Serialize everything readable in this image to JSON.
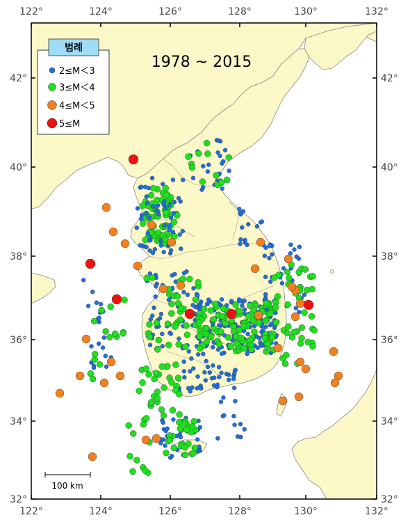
{
  "title": "1978 ~ 2015",
  "axes": {
    "lon_ticks": [
      "122°",
      "124°",
      "126°",
      "128°",
      "130°",
      "132°"
    ],
    "lat_ticks": [
      "32°",
      "34°",
      "36°",
      "38°",
      "40°",
      "42°"
    ]
  },
  "legend": {
    "title": "범례",
    "items": [
      {
        "label": "2≤M＜3",
        "color": "#1e6fe0"
      },
      {
        "label": "3≤M＜4",
        "color": "#1ee01e"
      },
      {
        "label": "4≤M＜5",
        "color": "#f08020"
      },
      {
        "label": "5≤M",
        "color": "#ee1111"
      }
    ]
  },
  "scale_bar": {
    "label": "100 km"
  },
  "colors": {
    "sea": "#ffffff",
    "land": "#fdf8c8",
    "border": "#888888",
    "legend_title_bg": "#9fdcf5"
  }
}
